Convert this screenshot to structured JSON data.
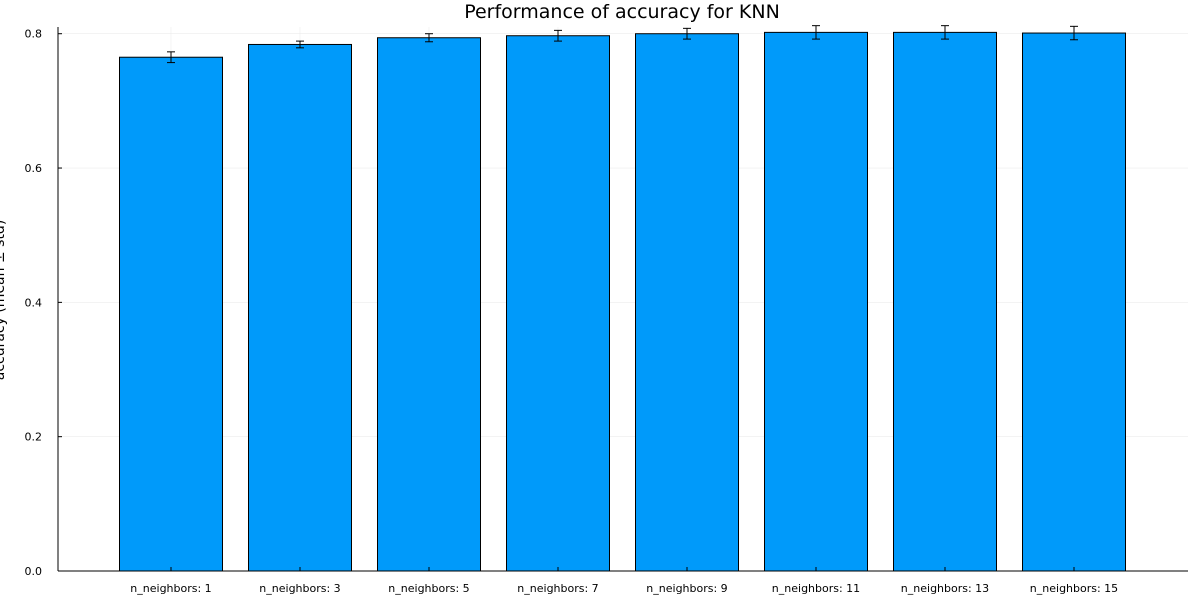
{
  "chart_data": {
    "type": "bar",
    "title": "Performance of accuracy for KNN",
    "ylabel": "accuracy (mean ± std)",
    "xlabel": "",
    "categories": [
      "n_neighbors: 1",
      "n_neighbors: 3",
      "n_neighbors: 5",
      "n_neighbors: 7",
      "n_neighbors: 9",
      "n_neighbors: 11",
      "n_neighbors: 13",
      "n_neighbors: 15"
    ],
    "series": [
      {
        "values": [
          0.765,
          0.784,
          0.794,
          0.797,
          0.8,
          0.802,
          0.802,
          0.801
        ],
        "errors": [
          0.008,
          0.005,
          0.006,
          0.008,
          0.008,
          0.01,
          0.01,
          0.01
        ]
      }
    ],
    "ylim": [
      0.0,
      0.81
    ],
    "yticks": [
      0.0,
      0.2,
      0.4,
      0.6,
      0.8
    ],
    "ytick_labels": [
      "0.0",
      "0.2",
      "0.4",
      "0.6",
      "0.8"
    ],
    "grid": true,
    "legend": "none",
    "colors": {
      "bar": "#009AFA",
      "bar_edge": "#000000",
      "error_bar": "#000000",
      "grid": "#ECECEC"
    }
  }
}
